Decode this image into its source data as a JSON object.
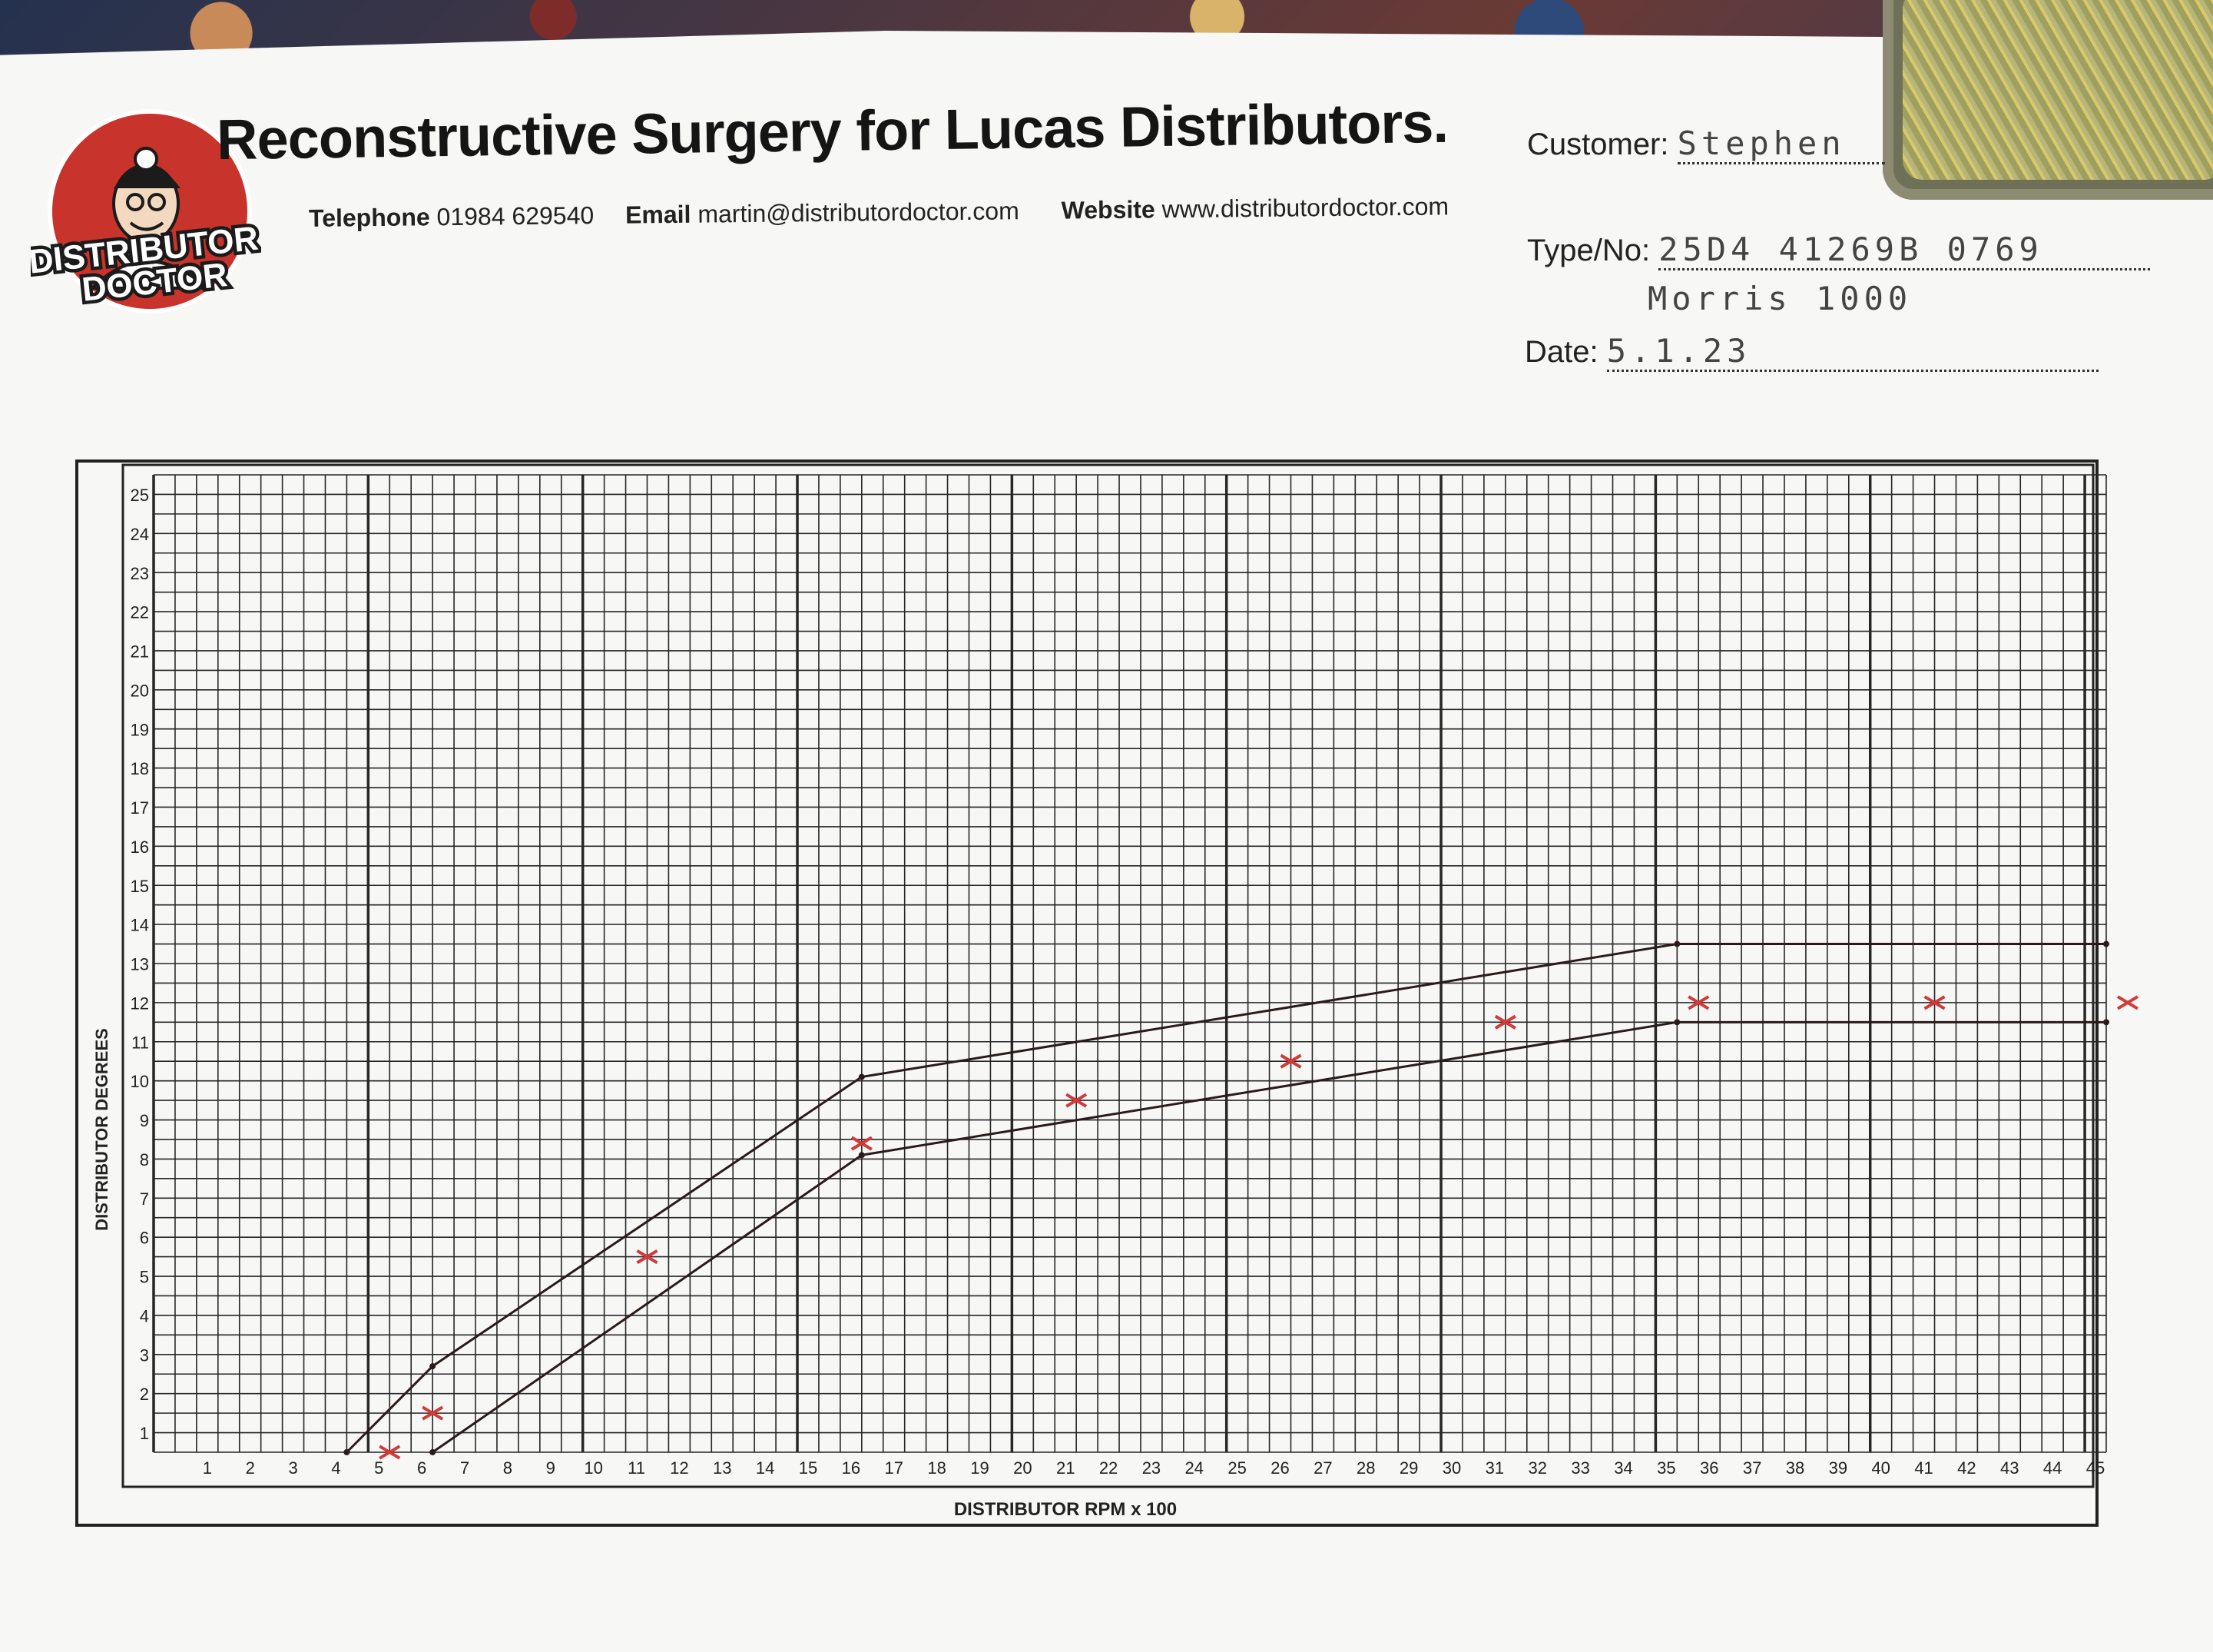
{
  "header": {
    "title": "Reconstructive Surgery for Lucas Distributors.",
    "telephone_label": "Telephone",
    "telephone": "01984 629540",
    "email_label": "Email",
    "email": "martin@distributordoctor.com",
    "website_label": "Website",
    "website": "www.distributordoctor.com"
  },
  "logo": {
    "line1": "DISTRIBUTOR",
    "line2": "DOCTOR",
    "colors": {
      "red": "#c8332b",
      "dark": "#1b1b1b"
    }
  },
  "form": {
    "customer_label": "Customer:",
    "customer_value": "Stephen",
    "type_label": "Type/No:",
    "type_value": "25D4   41269B 0769",
    "type_value_line2": "Morris 1000",
    "date_label": "Date:",
    "date_value": "5.1.23"
  },
  "chart_data": {
    "type": "line",
    "xlabel": "DISTRIBUTOR RPM x 100",
    "ylabel": "DISTRIBUTOR DEGREES",
    "xlim": [
      0,
      45
    ],
    "ylim": [
      0,
      25
    ],
    "x_ticks": [
      1,
      2,
      3,
      4,
      5,
      6,
      7,
      8,
      9,
      10,
      11,
      12,
      13,
      14,
      15,
      16,
      17,
      18,
      19,
      20,
      21,
      22,
      23,
      24,
      25,
      26,
      27,
      28,
      29,
      30,
      31,
      32,
      33,
      34,
      35,
      36,
      37,
      38,
      39,
      40,
      41,
      42,
      43,
      44,
      45
    ],
    "y_ticks": [
      1,
      2,
      3,
      4,
      5,
      6,
      7,
      8,
      9,
      10,
      11,
      12,
      13,
      14,
      15,
      16,
      17,
      18,
      19,
      20,
      21,
      22,
      23,
      24,
      25
    ],
    "grid": true,
    "series": [
      {
        "style": "line",
        "color": "#2a1a1a",
        "points": [
          [
            4,
            0
          ],
          [
            6,
            2.2
          ],
          [
            16,
            9.6
          ],
          [
            35,
            13
          ],
          [
            45,
            13
          ]
        ]
      },
      {
        "style": "line",
        "color": "#2a1a1a",
        "points": [
          [
            6,
            0
          ],
          [
            16,
            7.6
          ],
          [
            35,
            11
          ],
          [
            45,
            11
          ]
        ]
      },
      {
        "style": "cross",
        "color": "#d23a3a",
        "points": [
          [
            5,
            0
          ],
          [
            6,
            1
          ],
          [
            11,
            5
          ],
          [
            16,
            7.9
          ],
          [
            21,
            9
          ],
          [
            26,
            10
          ],
          [
            31,
            11
          ],
          [
            35.5,
            11.5
          ],
          [
            41,
            11.5
          ],
          [
            45.5,
            11.5
          ]
        ]
      }
    ]
  }
}
